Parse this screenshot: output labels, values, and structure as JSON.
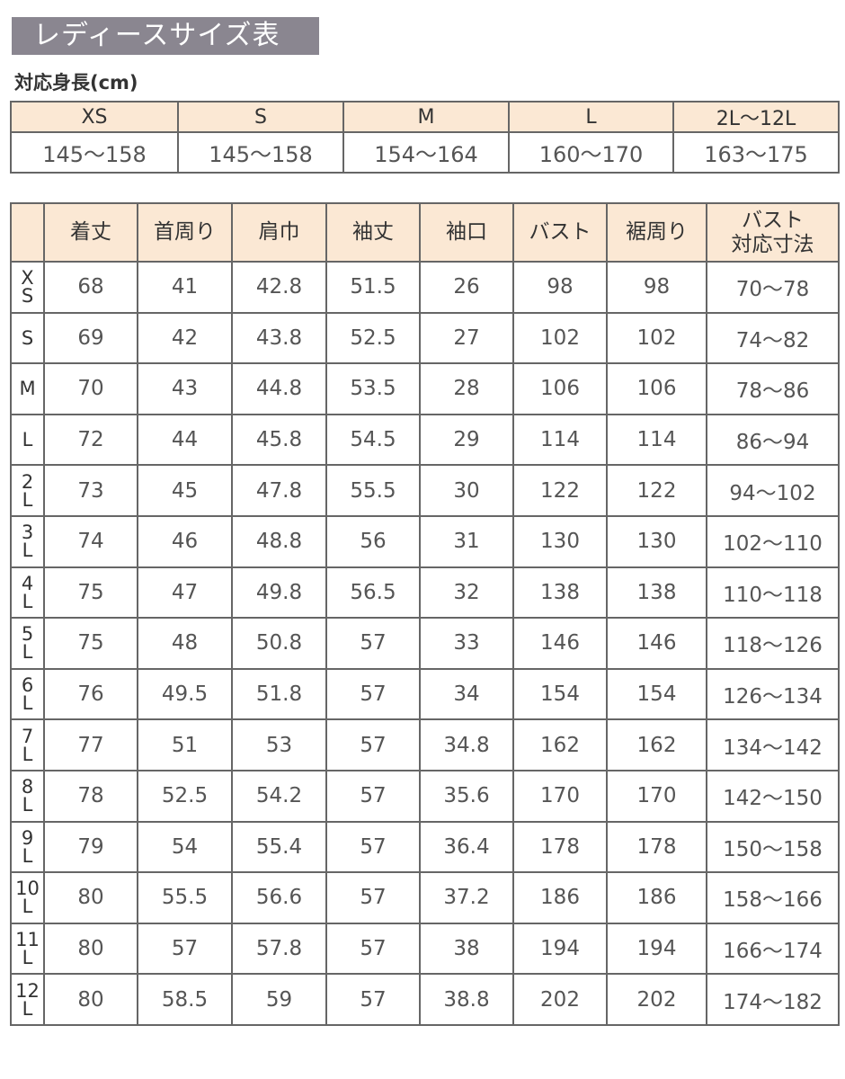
{
  "title": "レディースサイズ表",
  "height_section": {
    "label": "対応身長(cm)",
    "sizes": [
      "XS",
      "S",
      "M",
      "L",
      "2L〜12L"
    ],
    "ranges": [
      "145〜158",
      "145〜158",
      "154〜164",
      "160〜170",
      "163〜175"
    ]
  },
  "size_table": {
    "headers": [
      "",
      "着丈",
      "首周り",
      "肩巾",
      "袖丈",
      "袖口",
      "バスト",
      "裾周り",
      "バスト\n対応寸法"
    ],
    "rows": [
      [
        "X\nS",
        "68",
        "41",
        "42.8",
        "51.5",
        "26",
        "98",
        "98",
        "70〜78"
      ],
      [
        "S",
        "69",
        "42",
        "43.8",
        "52.5",
        "27",
        "102",
        "102",
        "74〜82"
      ],
      [
        "M",
        "70",
        "43",
        "44.8",
        "53.5",
        "28",
        "106",
        "106",
        "78〜86"
      ],
      [
        "L",
        "72",
        "44",
        "45.8",
        "54.5",
        "29",
        "114",
        "114",
        "86〜94"
      ],
      [
        "2\nL",
        "73",
        "45",
        "47.8",
        "55.5",
        "30",
        "122",
        "122",
        "94〜102"
      ],
      [
        "3\nL",
        "74",
        "46",
        "48.8",
        "56",
        "31",
        "130",
        "130",
        "102〜110"
      ],
      [
        "4\nL",
        "75",
        "47",
        "49.8",
        "56.5",
        "32",
        "138",
        "138",
        "110〜118"
      ],
      [
        "5\nL",
        "75",
        "48",
        "50.8",
        "57",
        "33",
        "146",
        "146",
        "118〜126"
      ],
      [
        "6\nL",
        "76",
        "49.5",
        "51.8",
        "57",
        "34",
        "154",
        "154",
        "126〜134"
      ],
      [
        "7\nL",
        "77",
        "51",
        "53",
        "57",
        "34.8",
        "162",
        "162",
        "134〜142"
      ],
      [
        "8\nL",
        "78",
        "52.5",
        "54.2",
        "57",
        "35.6",
        "170",
        "170",
        "142〜150"
      ],
      [
        "9\nL",
        "79",
        "54",
        "55.4",
        "57",
        "36.4",
        "178",
        "178",
        "150〜158"
      ],
      [
        "10\nL",
        "80",
        "55.5",
        "56.6",
        "57",
        "37.2",
        "186",
        "186",
        "158〜166"
      ],
      [
        "11\nL",
        "80",
        "57",
        "57.8",
        "57",
        "38",
        "194",
        "194",
        "166〜174"
      ],
      [
        "12\nL",
        "80",
        "58.5",
        "59",
        "57",
        "38.8",
        "202",
        "202",
        "174〜182"
      ]
    ]
  },
  "colors": {
    "title_bg": "#8a8690",
    "header_bg": "#fbe8d4",
    "border": "#666666"
  }
}
